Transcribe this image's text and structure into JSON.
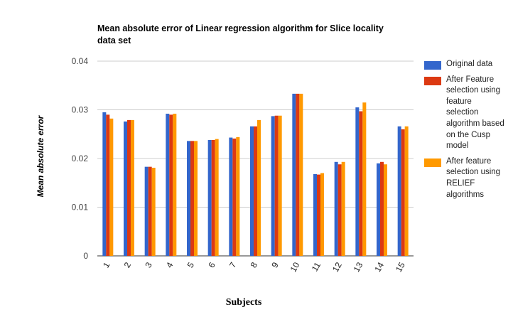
{
  "chart_data": {
    "type": "bar",
    "title": "Mean absolute error of Linear regression algorithm for Slice locality data set",
    "title_lines": [
      "Mean absolute error of Linear regression algorithm for Slice locality",
      "data set"
    ],
    "xlabel": "Subjects",
    "ylabel": "Mean absolute error",
    "ylim": [
      0,
      0.04
    ],
    "yticks": [
      0,
      0.01,
      0.02,
      0.03,
      0.04
    ],
    "ytick_labels": [
      "0",
      "0.01",
      "0.02",
      "0.03",
      "0.04"
    ],
    "grid": true,
    "legend_position": "right",
    "categories": [
      "1",
      "2",
      "3",
      "4",
      "5",
      "6",
      "7",
      "8",
      "9",
      "10",
      "11",
      "12",
      "13",
      "14",
      "15"
    ],
    "series": [
      {
        "name": "Original data",
        "color": "#3366cc",
        "values": [
          0.0295,
          0.0276,
          0.0183,
          0.0292,
          0.0236,
          0.0238,
          0.0243,
          0.0266,
          0.0287,
          0.0333,
          0.0168,
          0.0193,
          0.0305,
          0.019,
          0.0266
        ]
      },
      {
        "name": "After Feature selection using feature selection algorithm based on the Cusp model",
        "color": "#dc3912",
        "values": [
          0.029,
          0.0279,
          0.0183,
          0.029,
          0.0236,
          0.0238,
          0.0241,
          0.0266,
          0.0288,
          0.0333,
          0.0167,
          0.0188,
          0.0297,
          0.0193,
          0.026
        ]
      },
      {
        "name": "After feature selection using RELIEF algorithms",
        "color": "#ff9900",
        "values": [
          0.0282,
          0.0279,
          0.0181,
          0.0292,
          0.0236,
          0.024,
          0.0244,
          0.0279,
          0.0288,
          0.0333,
          0.017,
          0.0193,
          0.0315,
          0.0188,
          0.0266
        ]
      }
    ]
  }
}
